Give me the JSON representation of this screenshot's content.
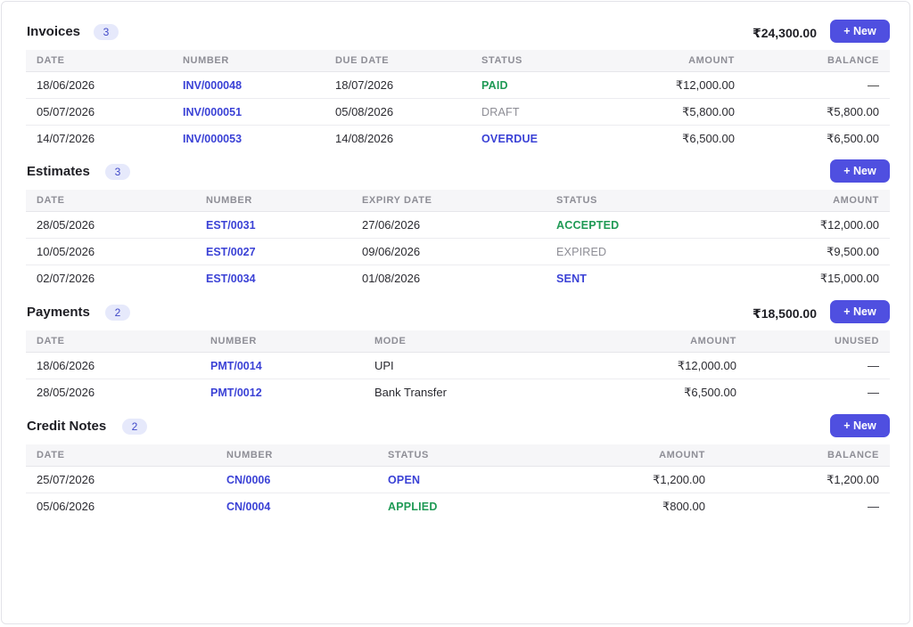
{
  "invoices": {
    "title": "Invoices",
    "count": "3",
    "total": "₹24,300.00",
    "new_label": "+ New",
    "columns": [
      "DATE",
      "NUMBER",
      "DUE DATE",
      "STATUS",
      "AMOUNT",
      "BALANCE"
    ],
    "rows": [
      {
        "date": "18/06/2026",
        "number": "INV/000048",
        "due": "18/07/2026",
        "status": "PAID",
        "amount": "₹12,000.00",
        "balance": "—"
      },
      {
        "date": "05/07/2026",
        "number": "INV/000051",
        "due": "05/08/2026",
        "status": "DRAFT",
        "amount": "₹5,800.00",
        "balance": "₹5,800.00"
      },
      {
        "date": "14/07/2026",
        "number": "INV/000053",
        "due": "14/08/2026",
        "status": "OVERDUE",
        "amount": "₹6,500.00",
        "balance": "₹6,500.00"
      }
    ]
  },
  "estimates": {
    "title": "Estimates",
    "count": "3",
    "new_label": "+ New",
    "columns": [
      "DATE",
      "NUMBER",
      "EXPIRY DATE",
      "STATUS",
      "AMOUNT"
    ],
    "rows": [
      {
        "date": "28/05/2026",
        "number": "EST/0031",
        "expiry": "27/06/2026",
        "status": "ACCEPTED",
        "amount": "₹12,000.00"
      },
      {
        "date": "10/05/2026",
        "number": "EST/0027",
        "expiry": "09/06/2026",
        "status": "EXPIRED",
        "amount": "₹9,500.00"
      },
      {
        "date": "02/07/2026",
        "number": "EST/0034",
        "expiry": "01/08/2026",
        "status": "SENT",
        "amount": "₹15,000.00"
      }
    ]
  },
  "payments": {
    "title": "Payments",
    "count": "2",
    "total": "₹18,500.00",
    "new_label": "+ New",
    "columns": [
      "DATE",
      "NUMBER",
      "MODE",
      "AMOUNT",
      "UNUSED"
    ],
    "rows": [
      {
        "date": "18/06/2026",
        "number": "PMT/0014",
        "mode": "UPI",
        "amount": "₹12,000.00",
        "unused": "—"
      },
      {
        "date": "28/05/2026",
        "number": "PMT/0012",
        "mode": "Bank Transfer",
        "amount": "₹6,500.00",
        "unused": "—"
      }
    ]
  },
  "credit_notes": {
    "title": "Credit Notes",
    "count": "2",
    "new_label": "+ New",
    "columns": [
      "DATE",
      "NUMBER",
      "STATUS",
      "AMOUNT",
      "BALANCE"
    ],
    "rows": [
      {
        "date": "25/07/2026",
        "number": "CN/0006",
        "status": "OPEN",
        "amount": "₹1,200.00",
        "balance": "₹1,200.00"
      },
      {
        "date": "05/06/2026",
        "number": "CN/0004",
        "status": "APPLIED",
        "amount": "₹800.00",
        "balance": "—"
      }
    ]
  },
  "colors": {
    "accent": "#4f4fe0",
    "link": "#3b42d6",
    "status_green": "#1f9a55",
    "status_gray": "#8d8d95",
    "badge_bg": "#e6e9fb"
  }
}
